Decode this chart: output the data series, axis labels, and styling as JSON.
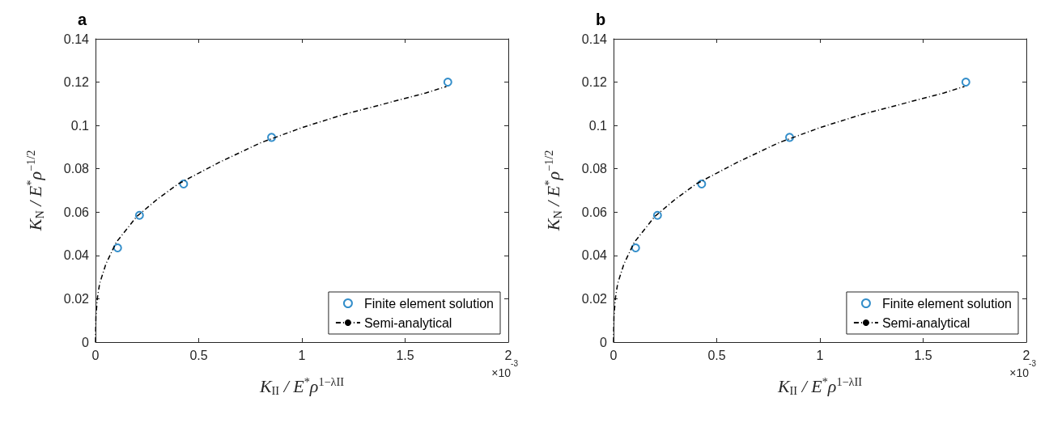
{
  "chart_data": [
    {
      "type": "scatter",
      "title": "a",
      "xlabel": "K$_{II}$ / E$^{*}$ρ$^{1−λII}$",
      "ylabel": "K$_{N}$ / E$^{*}$ρ$^{−1/2}$",
      "annotations": [
        "×10$^{-3}$"
      ],
      "xlim": [
        0,
        2
      ],
      "xticks": [
        0,
        0.5,
        1,
        1.5,
        2
      ],
      "ylim": [
        0,
        0.14
      ],
      "yticks": [
        0,
        0.02,
        0.04,
        0.06,
        0.08,
        0.1,
        0.12,
        0.14
      ],
      "legend": "bottom right",
      "grid": false,
      "series": [
        {
          "name": "Finite element solution",
          "marker": "circle",
          "color": "#0072bd",
          "x": [
            0.107,
            0.213,
            0.427,
            0.853,
            1.707
          ],
          "values": [
            0.0435,
            0.0585,
            0.073,
            0.0945,
            0.12
          ]
        },
        {
          "name": "Semi-analytical",
          "type": "line",
          "marker": "none",
          "line_style": "dashed",
          "color": "#000000",
          "x": [
            0,
            0.002,
            0.01,
            0.02,
            0.05,
            0.1,
            0.2,
            0.3,
            0.4,
            0.5,
            0.6,
            0.8,
            1.0,
            1.2,
            1.4,
            1.6,
            1.7
          ],
          "values": [
            0,
            0.012,
            0.021,
            0.027,
            0.036,
            0.046,
            0.058,
            0.066,
            0.073,
            0.078,
            0.083,
            0.092,
            0.099,
            0.105,
            0.11,
            0.115,
            0.118
          ]
        }
      ]
    },
    {
      "type": "scatter",
      "title": "b",
      "xlabel": "K$_{II}$ / E$^{*}$ρ$^{1−λII}$",
      "ylabel": "K$_{N}$ / E$^{*}$ρ$^{−1/2}$",
      "annotations": [
        "×10$^{-3}$"
      ],
      "xlim": [
        0,
        2
      ],
      "xticks": [
        0,
        0.5,
        1,
        1.5,
        2
      ],
      "ylim": [
        0,
        0.14
      ],
      "yticks": [
        0,
        0.02,
        0.04,
        0.06,
        0.08,
        0.1,
        0.12,
        0.14
      ],
      "legend": "bottom right",
      "grid": false,
      "series": [
        {
          "name": "Finite element solution",
          "marker": "circle",
          "color": "#0072bd",
          "x": [
            0.107,
            0.213,
            0.427,
            0.853,
            1.707
          ],
          "values": [
            0.0435,
            0.0585,
            0.073,
            0.0945,
            0.12
          ]
        },
        {
          "name": "Semi-analytical",
          "type": "line",
          "marker": "none",
          "line_style": "dashed",
          "color": "#000000",
          "x": [
            0,
            0.002,
            0.01,
            0.02,
            0.05,
            0.1,
            0.2,
            0.3,
            0.4,
            0.5,
            0.6,
            0.8,
            1.0,
            1.2,
            1.4,
            1.6,
            1.7
          ],
          "values": [
            0,
            0.012,
            0.021,
            0.027,
            0.036,
            0.046,
            0.058,
            0.066,
            0.073,
            0.078,
            0.083,
            0.092,
            0.099,
            0.105,
            0.11,
            0.115,
            0.118
          ]
        }
      ]
    }
  ]
}
